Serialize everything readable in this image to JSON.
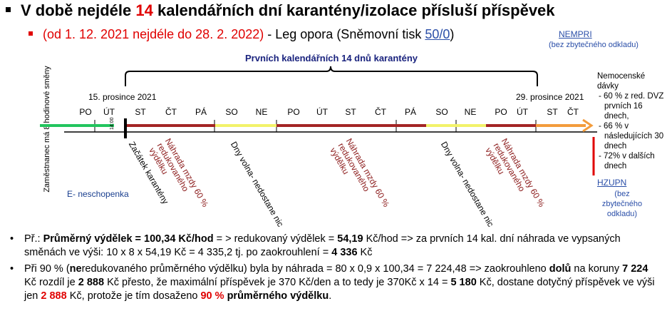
{
  "title": {
    "part1": "V době nejdéle ",
    "number": "14",
    "part2": " kalendářních dní karantény/izolace přísluší příspěvek"
  },
  "subtitle": {
    "red_text": "(od 1. 12. 2021 nejdéle do 28. 2. 2022)",
    "dash": " - Leg opora (Sněmovní tisk ",
    "link": "50/0",
    "close": ")"
  },
  "side_top": {
    "link": "NEMPRI",
    "note": "(bez zbytečného odkladu)"
  },
  "side_bottom": {
    "link": "HZUPN",
    "note": "(bez zbytečného odkladu)"
  },
  "brace_label": "Prvních kalendářních 14 dnů karantény",
  "vertical_label": "Zaměstnanec má 8 hodinové směny",
  "date_start": "15. prosince 2021",
  "date_end": "29. prosince 2021",
  "tiny_time": "14:00",
  "days": [
    "PO",
    "ÚT",
    "ST",
    "ČT",
    "PÁ",
    "SO",
    "NE",
    "PO",
    "ÚT",
    "ST",
    "ČT",
    "PÁ",
    "SO",
    "NE",
    "PO",
    "ÚT",
    "ST",
    "ČT"
  ],
  "diagonal_labels": {
    "start": "Začátek karantény",
    "comp1": "Náhrada mzdy 60 % redukovaného výdělku",
    "weekend1": "Dny volna- nedostane nic",
    "comp2": "Náhrada mzdy 60 % redukovaného výdělku",
    "weekend2": "Dny volna- nedostane nic",
    "comp3": "Náhrada mzdy 60 % redukovaného výdělku"
  },
  "e_neschopenka": "E- neschopenka",
  "sick_pay": {
    "heading": "Nemocenské dávky",
    "items": [
      "- 60 % z red. DVZ prvních 16 dnech,",
      "- 66 % v následujících 30 dnech",
      "- 72% v dalších dnech"
    ]
  },
  "notes": {
    "n1_a": "Př.: ",
    "n1_b": "Průměrný výdělek = 100,34 Kč/hod",
    "n1_c": " = > redukovaný výdělek = ",
    "n1_d": "54,19",
    "n1_e": " Kč/hod => za prvních 14 kal. dní náhrada ve vypsaných směnách ve výši: 10 x 8 x 54,19 Kč = 4 335,2 tj. po zaokrouhlení =  ",
    "n1_f": "4 336",
    "n1_g": " Kč",
    "n2_a": "Při 90 % (",
    "n2_b": "ne",
    "n2_c": "redukovaného průměrného výdělku) byla by náhrada = 80 x 0,9 x 100,34 = 7 224,48 => zaokrouhleno ",
    "n2_d": "dolů",
    "n2_e": " na koruny ",
    "n2_f": "7 224",
    "n2_g": " Kč rozdíl je ",
    "n2_h": "2 888",
    "n2_i": " Kč přesto, že maximální příspěvek je 370 Kč/den a to tedy je 370Kč x 14  = ",
    "n2_j": "5 180",
    "n2_k": " Kč, dostane dotyčný příspěvek ve výši jen ",
    "n2_l": "2 888",
    "n2_m": " Kč, protože je tím dosaženo ",
    "n2_n": "90 %",
    "n2_o": " průměrného výdělku",
    "n2_p": "."
  },
  "colors": {
    "red": "#e00000",
    "green": "#22c55e",
    "darkred": "#a32424",
    "yellow": "#f2f26a",
    "orange": "#f39c3c",
    "blue": "#2b4fa8"
  }
}
